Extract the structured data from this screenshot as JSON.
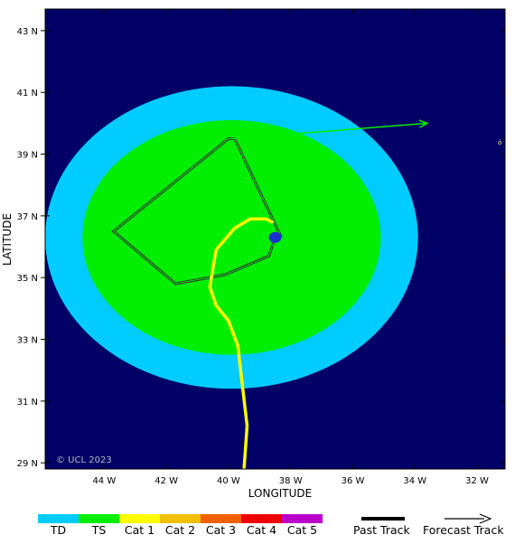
{
  "map": {
    "background_color": "#000066",
    "xlabel": "LONGITUDE",
    "ylabel": "LATITUDE",
    "copyright": "© UCL 2023",
    "lon_range": [
      -45.9,
      -31.1
    ],
    "lat_range": [
      28.8,
      43.7
    ],
    "lon_ticks": [
      {
        "value": -44,
        "label": "44 W"
      },
      {
        "value": -42,
        "label": "42 W"
      },
      {
        "value": -40,
        "label": "40 W"
      },
      {
        "value": -38,
        "label": "38 W"
      },
      {
        "value": -36,
        "label": "36 W"
      },
      {
        "value": -34,
        "label": "34 W"
      },
      {
        "value": -32,
        "label": "32 W"
      }
    ],
    "lat_ticks": [
      {
        "value": 29,
        "label": "29 N"
      },
      {
        "value": 31,
        "label": "31 N"
      },
      {
        "value": 33,
        "label": "33 N"
      },
      {
        "value": 35,
        "label": "35 N"
      },
      {
        "value": 37,
        "label": "37 N"
      },
      {
        "value": 39,
        "label": "39 N"
      },
      {
        "value": 41,
        "label": "41 N"
      },
      {
        "value": 43,
        "label": "43 N"
      }
    ]
  },
  "wind_fields": [
    {
      "category": "TD",
      "center": [
        -39.9,
        36.3
      ],
      "radius_deg": [
        6.0,
        4.9
      ],
      "color": "#00ccff"
    },
    {
      "category": "TS",
      "center": [
        -39.9,
        36.3
      ],
      "radius_deg": [
        4.8,
        3.8
      ],
      "color": "#00ee00"
    }
  ],
  "storm_center": {
    "lon": -38.5,
    "lat": 36.3,
    "color": "#1a33cc"
  },
  "past_track": {
    "color": "#ffff00",
    "points": [
      [
        -39.5,
        28.8
      ],
      [
        -39.4,
        30.2
      ],
      [
        -39.7,
        32.8
      ],
      [
        -40.0,
        33.6
      ],
      [
        -40.4,
        34.1
      ],
      [
        -40.6,
        34.7
      ],
      [
        -40.4,
        35.9
      ],
      [
        -39.8,
        36.6
      ],
      [
        -39.3,
        36.9
      ],
      [
        -38.8,
        36.9
      ],
      [
        -38.6,
        36.8
      ]
    ]
  },
  "forecast_track": {
    "color": "#00ee00",
    "points": [
      [
        -39.9,
        39.5
      ],
      [
        -33.6,
        40.0
      ]
    ]
  },
  "cone": {
    "color": "#333333",
    "points": [
      [
        -38.5,
        36.3
      ],
      [
        -38.7,
        35.7
      ],
      [
        -40.1,
        35.1
      ],
      [
        -41.7,
        34.8
      ],
      [
        -43.7,
        36.5
      ],
      [
        -40.0,
        39.5
      ],
      [
        -39.8,
        39.5
      ],
      [
        -38.3,
        36.3
      ]
    ]
  },
  "legend": {
    "categories": [
      {
        "label": "TD",
        "color": "#00ccff"
      },
      {
        "label": "TS",
        "color": "#00ee00"
      },
      {
        "label": "Cat 1",
        "color": "#ffff00"
      },
      {
        "label": "Cat 2",
        "color": "#f0c000"
      },
      {
        "label": "Cat 3",
        "color": "#f06000"
      },
      {
        "label": "Cat 4",
        "color": "#ee0000"
      },
      {
        "label": "Cat 5",
        "color": "#bb00cc"
      }
    ],
    "past_track_label": "Past Track",
    "forecast_track_label": "Forecast Track"
  }
}
